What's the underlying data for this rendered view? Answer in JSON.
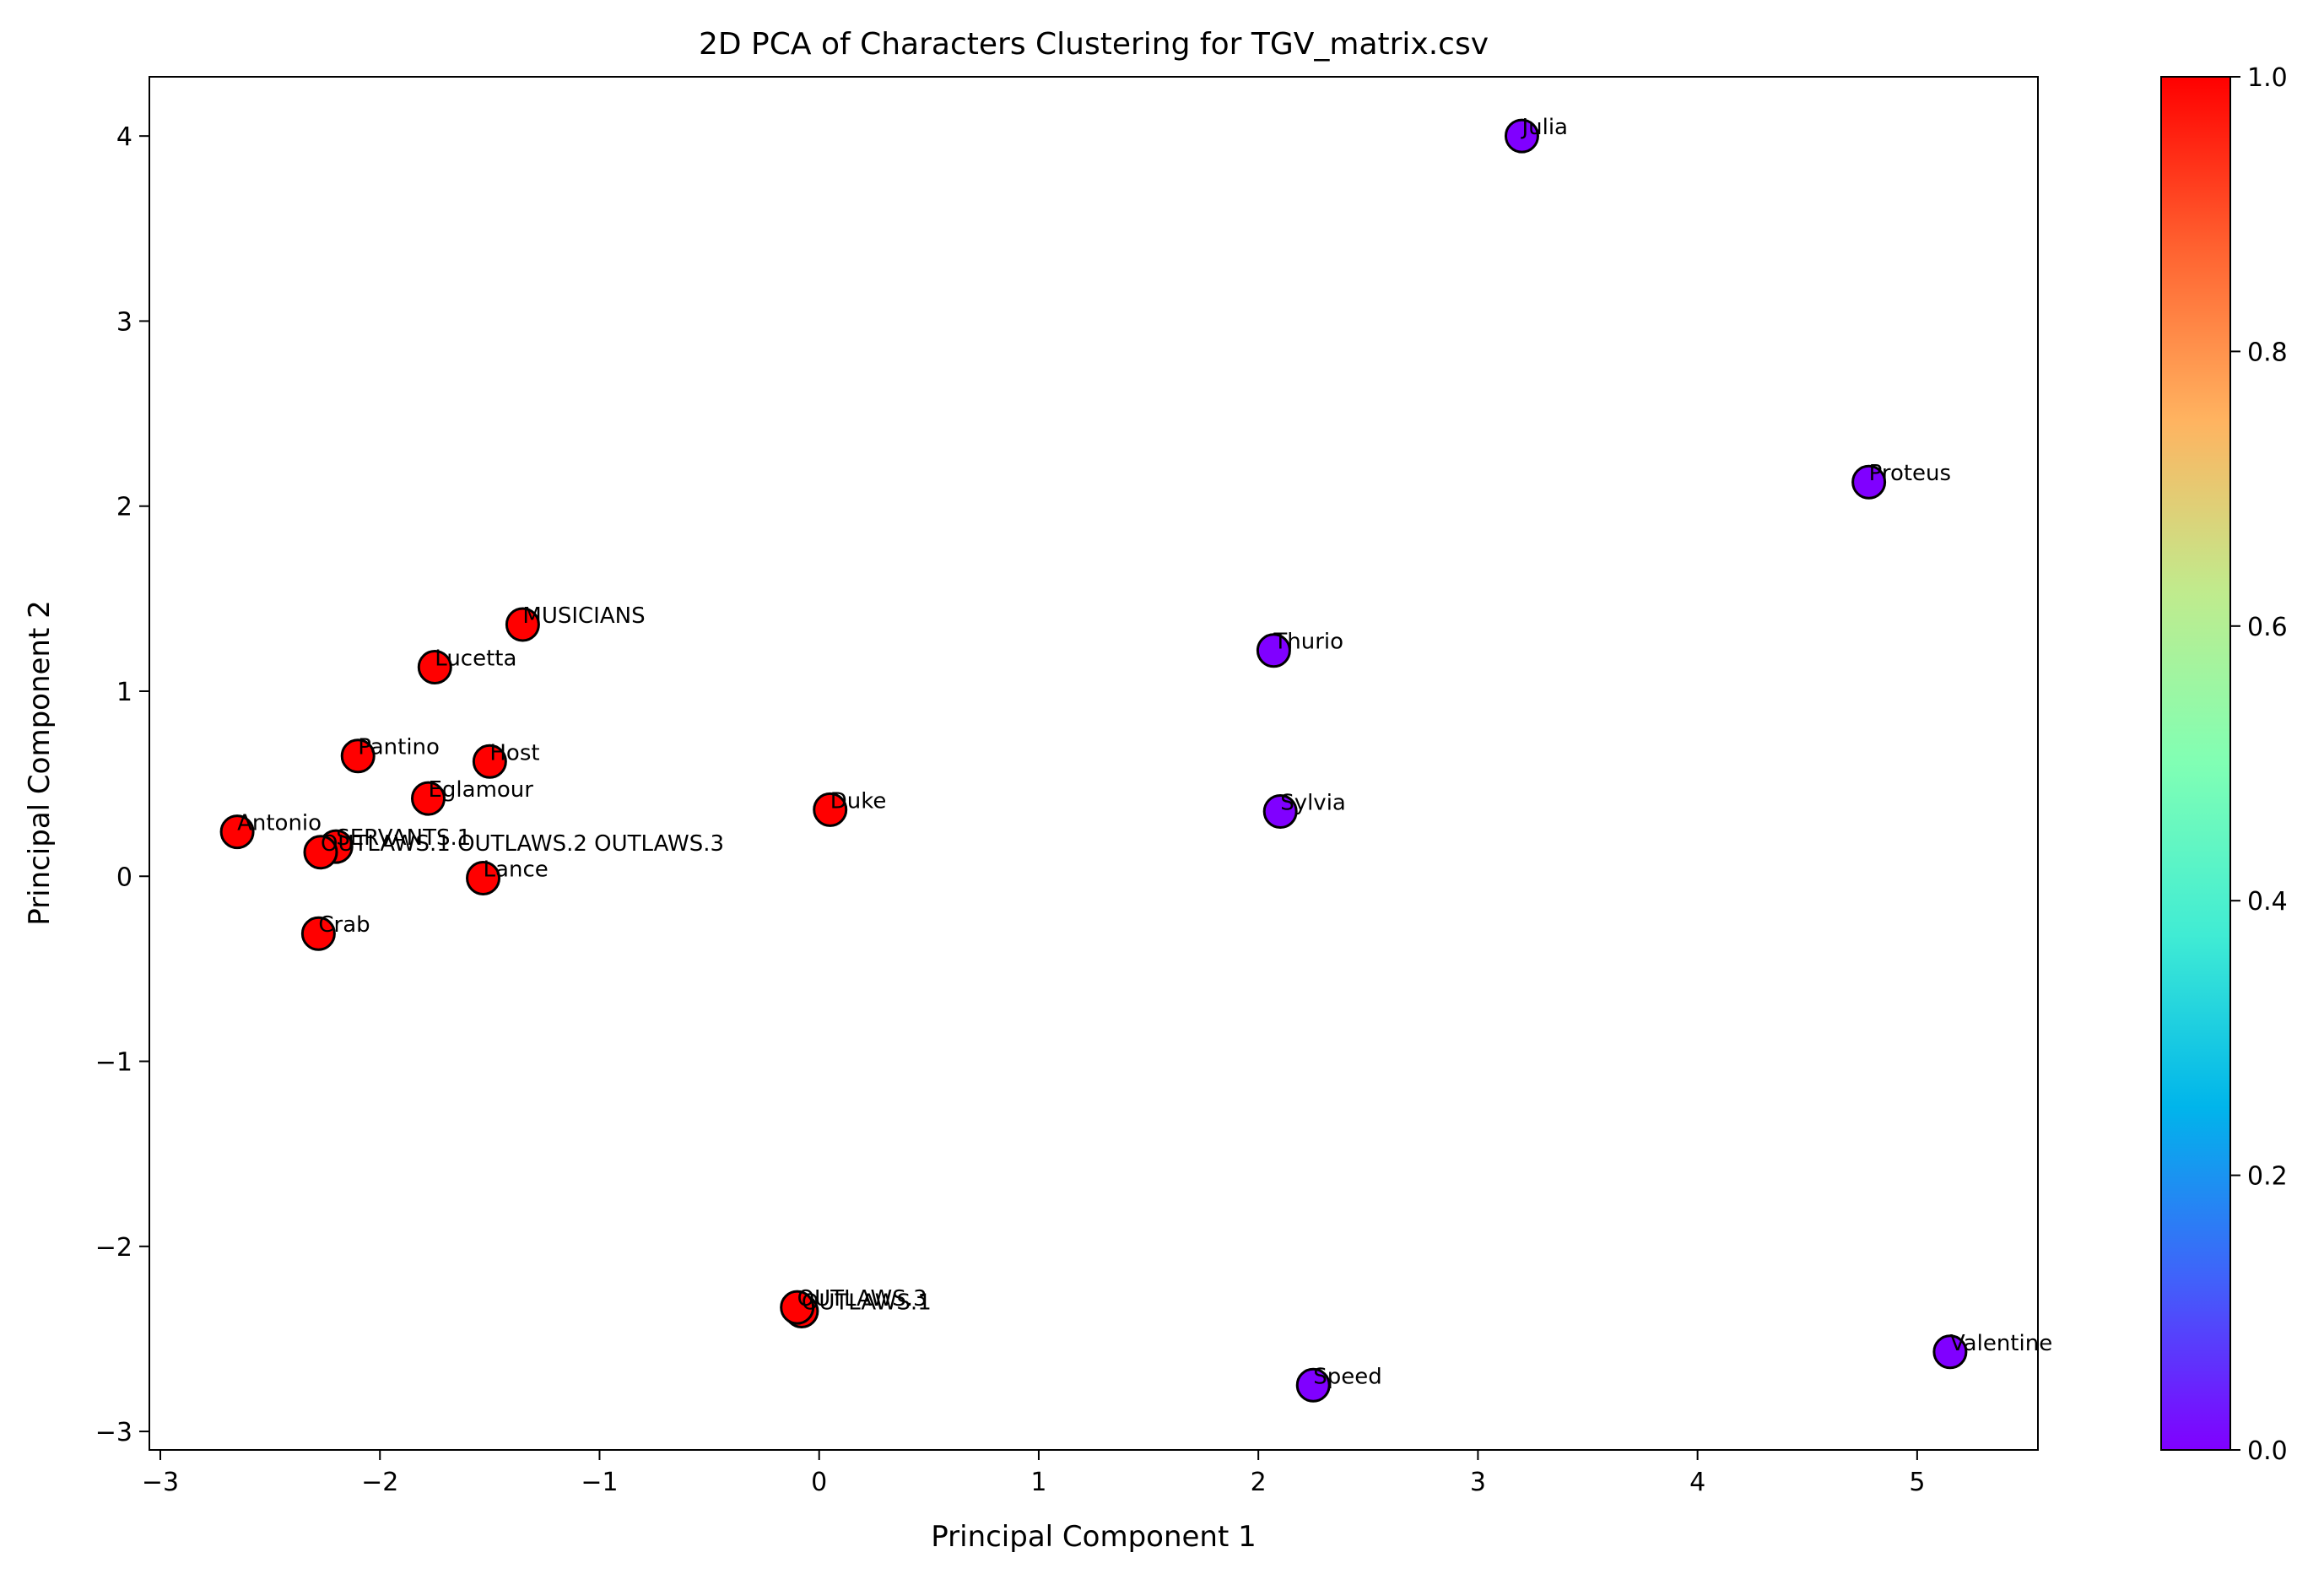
{
  "chart_data": {
    "type": "scatter",
    "title": "2D PCA of Characters Clustering for TGV_matrix.csv",
    "xlabel": "Principal Component 1",
    "ylabel": "Principal Component 2",
    "xlim": [
      -3.05,
      5.55
    ],
    "ylim": [
      -3.1,
      4.32
    ],
    "xticks": [
      -3,
      -2,
      -1,
      0,
      1,
      2,
      3,
      4,
      5
    ],
    "xtick_labels": [
      "−3",
      "−2",
      "−1",
      "0",
      "1",
      "2",
      "3",
      "4",
      "5"
    ],
    "yticks": [
      -3,
      -2,
      -1,
      0,
      1,
      2,
      3,
      4
    ],
    "ytick_labels": [
      "−3",
      "−2",
      "−1",
      "0",
      "1",
      "2",
      "3",
      "4"
    ],
    "grid": false,
    "colormap": "rainbow",
    "colorbar": {
      "range": [
        0.0,
        1.0
      ],
      "ticks": [
        0.0,
        0.2,
        0.4,
        0.6,
        0.8,
        1.0
      ],
      "tick_labels": [
        "0.0",
        "0.2",
        "0.4",
        "0.6",
        "0.8",
        "1.0"
      ]
    },
    "cluster_colors": {
      "0": "#8000ff",
      "1": "#ff0000"
    },
    "points": [
      {
        "label": "Julia",
        "x": 3.2,
        "y": 4.0,
        "cluster": 0
      },
      {
        "label": "Proteus",
        "x": 4.78,
        "y": 2.13,
        "cluster": 0
      },
      {
        "label": "Thurio",
        "x": 2.07,
        "y": 1.22,
        "cluster": 0
      },
      {
        "label": "Sylvia",
        "x": 2.1,
        "y": 0.35,
        "cluster": 0
      },
      {
        "label": "Speed",
        "x": 2.25,
        "y": -2.75,
        "cluster": 0
      },
      {
        "label": "Valentine",
        "x": 5.15,
        "y": -2.57,
        "cluster": 0
      },
      {
        "label": "MUSICIANS",
        "x": -1.35,
        "y": 1.36,
        "cluster": 1
      },
      {
        "label": "Lucetta",
        "x": -1.75,
        "y": 1.13,
        "cluster": 1
      },
      {
        "label": "Pantino",
        "x": -2.1,
        "y": 0.65,
        "cluster": 1
      },
      {
        "label": "Host",
        "x": -1.5,
        "y": 0.62,
        "cluster": 1
      },
      {
        "label": "Eglamour",
        "x": -1.78,
        "y": 0.42,
        "cluster": 1
      },
      {
        "label": "Duke",
        "x": 0.05,
        "y": 0.36,
        "cluster": 1
      },
      {
        "label": "Antonio",
        "x": -2.65,
        "y": 0.24,
        "cluster": 1
      },
      {
        "label": "SERVANTS.1",
        "x": -2.2,
        "y": 0.16,
        "cluster": 1
      },
      {
        "label": "OUTLAWS.1 OUTLAWS.2 OUTLAWS.3",
        "x": -2.27,
        "y": 0.13,
        "cluster": 1
      },
      {
        "label": "Lance",
        "x": -1.53,
        "y": -0.01,
        "cluster": 1
      },
      {
        "label": "Crab",
        "x": -2.28,
        "y": -0.31,
        "cluster": 1
      },
      {
        "label": "OUTLAWS.1",
        "x": -0.08,
        "y": -2.35,
        "cluster": 1
      },
      {
        "label": "OUTLAWS.3",
        "x": -0.1,
        "y": -2.33,
        "cluster": 1
      }
    ]
  }
}
